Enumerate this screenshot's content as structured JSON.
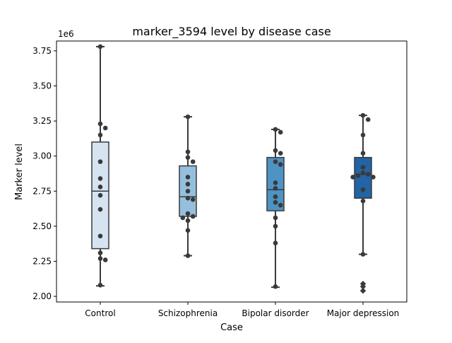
{
  "chart_data": {
    "type": "box",
    "title": "marker_3594 level by disease case",
    "xlabel": "Case",
    "ylabel": "Marker level",
    "y_scale_label": "1e6",
    "ylim": [
      1.96,
      3.82
    ],
    "yticks": [
      2.0,
      2.25,
      2.5,
      2.75,
      3.0,
      3.25,
      3.5,
      3.75
    ],
    "ytick_labels": [
      "2.00",
      "2.25",
      "2.50",
      "2.75",
      "3.00",
      "3.25",
      "3.50",
      "3.75"
    ],
    "grid": false,
    "categories": [
      "Control",
      "Schizophrenia",
      "Bipolar disorder",
      "Major depression"
    ],
    "box_colors": [
      "#d6e4f2",
      "#95c0dd",
      "#4d93c4",
      "#2264a5"
    ],
    "point_color": "#3a3a3a",
    "boxes": [
      {
        "category": "Control",
        "whisker_low": 2.075,
        "q1": 2.34,
        "median": 2.75,
        "q3": 3.1,
        "whisker_high": 3.78,
        "points": [
          3.78,
          3.23,
          3.2,
          3.15,
          2.96,
          2.84,
          2.78,
          2.72,
          2.62,
          2.43,
          2.31,
          2.27,
          2.26,
          2.08
        ]
      },
      {
        "category": "Schizophrenia",
        "whisker_low": 2.29,
        "q1": 2.57,
        "median": 2.71,
        "q3": 2.93,
        "whisker_high": 3.28,
        "points": [
          3.28,
          3.03,
          2.99,
          2.96,
          2.85,
          2.8,
          2.75,
          2.7,
          2.69,
          2.59,
          2.57,
          2.56,
          2.54,
          2.47,
          2.29
        ]
      },
      {
        "category": "Bipolar disorder",
        "whisker_low": 2.065,
        "q1": 2.61,
        "median": 2.76,
        "q3": 2.99,
        "whisker_high": 3.19,
        "points": [
          3.19,
          3.17,
          3.04,
          3.02,
          2.96,
          2.94,
          2.81,
          2.77,
          2.71,
          2.67,
          2.65,
          2.56,
          2.5,
          2.38,
          2.07
        ]
      },
      {
        "category": "Major depression",
        "whisker_low": 2.3,
        "q1": 2.7,
        "median": 2.87,
        "q3": 2.99,
        "whisker_high": 3.29,
        "points": [
          3.29,
          3.26,
          3.15,
          3.02,
          2.92,
          2.88,
          2.87,
          2.86,
          2.85,
          2.85,
          2.76,
          2.68,
          2.3
        ],
        "outliers": [
          2.09,
          2.07,
          2.04
        ]
      }
    ]
  }
}
